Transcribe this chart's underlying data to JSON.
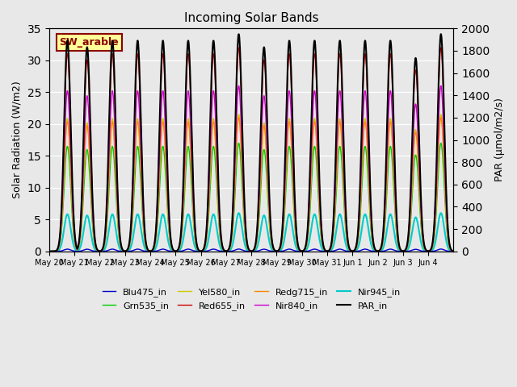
{
  "title": "Incoming Solar Bands",
  "ylabel_left": "Solar Radiation (W/m2)",
  "ylabel_right": "PAR (μmol/m2/s)",
  "ylim_left": [
    0,
    35
  ],
  "ylim_right": [
    0,
    2000
  ],
  "bg_color": "#e8e8e8",
  "annotation_text": "SW_arable",
  "annotation_color": "#8b0000",
  "annotation_bg": "#ffff99",
  "annotation_border": "#8b0000",
  "series": [
    {
      "name": "Blu475_in",
      "color": "#0000cc",
      "lw": 1.0,
      "peak": 0.35,
      "zorder": 5,
      "secondary": false
    },
    {
      "name": "Grn535_in",
      "color": "#00cc00",
      "lw": 1.0,
      "peak": 17.0,
      "zorder": 5,
      "secondary": false
    },
    {
      "name": "Yel580_in",
      "color": "#cccc00",
      "lw": 1.0,
      "peak": 21.5,
      "zorder": 5,
      "secondary": false
    },
    {
      "name": "Red655_in",
      "color": "#cc0000",
      "lw": 1.0,
      "peak": 32.0,
      "zorder": 5,
      "secondary": false
    },
    {
      "name": "Redg715_in",
      "color": "#ff8800",
      "lw": 1.0,
      "peak": 21.0,
      "zorder": 5,
      "secondary": false
    },
    {
      "name": "Nir840_in",
      "color": "#cc00cc",
      "lw": 1.0,
      "peak": 26.0,
      "zorder": 5,
      "secondary": false
    },
    {
      "name": "Nir945_in",
      "color": "#00cccc",
      "lw": 1.5,
      "peak": 6.0,
      "zorder": 4,
      "secondary": false
    },
    {
      "name": "PAR_in",
      "color": "#000000",
      "lw": 1.5,
      "peak": 1950,
      "zorder": 6,
      "secondary": true
    }
  ],
  "num_days": 16,
  "points_per_day": 96,
  "day_labels": [
    "May 20",
    "May 21",
    "May 22",
    "May 23",
    "May 24",
    "May 25",
    "May 26",
    "May 27",
    "May 28",
    "May 29",
    "May 30",
    "May 31",
    "Jun 1",
    "Jun 2",
    "Jun 3",
    "Jun 4"
  ],
  "tick_positions": [
    0,
    1,
    2,
    3,
    4,
    5,
    6,
    7,
    8,
    9,
    10,
    11,
    12,
    13,
    14,
    15
  ],
  "peak_variation": [
    0.97,
    0.94,
    0.97,
    0.97,
    0.97,
    0.97,
    0.97,
    1.0,
    0.94,
    0.97,
    0.97,
    0.97,
    0.97,
    0.97,
    0.89,
    1.0
  ],
  "sigma": 0.13,
  "yticks_left": [
    0,
    5,
    10,
    15,
    20,
    25,
    30,
    35
  ],
  "yticks_right": [
    0,
    200,
    400,
    600,
    800,
    1000,
    1200,
    1400,
    1600,
    1800,
    2000
  ]
}
